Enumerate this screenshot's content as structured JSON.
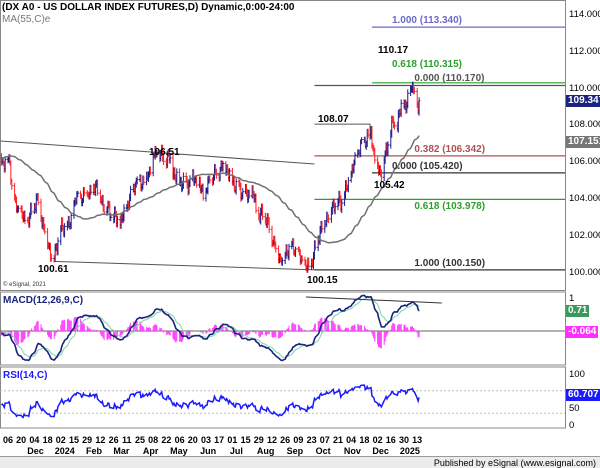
{
  "header": {
    "title": "(DX A0 - US DOLLAR INDEX FUTURES,D) Dynamic,0:00-24:00",
    "ma_label": "MA(55,C)e"
  },
  "copyright": "© eSignal, 2021",
  "footer": "Published by eSignal (www.esignal.com)",
  "colors": {
    "up": "#1a1a8c",
    "down": "#ff2020",
    "ma": "#707070",
    "macd": "#1a237e",
    "signal": "#7fd4a8",
    "hist": "#ff40ff",
    "rsi": "#1a1aff",
    "fib_blue": "#6a6ac8",
    "fib_green": "#2ca02c",
    "fib_brown": "#b05050"
  },
  "chart_data": {
    "type": "line",
    "title": "US DOLLAR INDEX FUTURES (DX A0), Daily",
    "x_unit": "days since 2023-11-06",
    "price_keypoints": [
      [
        -100,
        103.5
      ],
      [
        -70,
        105.5
      ],
      [
        -40,
        107.0
      ],
      [
        -15,
        106.5
      ],
      [
        -6,
        106.12
      ],
      [
        2,
        105.96
      ],
      [
        5,
        103.95
      ],
      [
        20,
        102.59
      ],
      [
        31,
        104.11
      ],
      [
        39,
        102.21
      ],
      [
        48,
        100.61
      ],
      [
        55,
        102.32
      ],
      [
        66,
        102.59
      ],
      [
        71,
        103.95
      ],
      [
        85,
        104.22
      ],
      [
        94,
        104.87
      ],
      [
        98,
        103.95
      ],
      [
        119,
        102.59
      ],
      [
        135,
        104.76
      ],
      [
        148,
        105.14
      ],
      [
        153,
        106.28
      ],
      [
        158,
        106.51
      ],
      [
        166,
        106.23
      ],
      [
        172,
        106.23
      ],
      [
        177,
        105.14
      ],
      [
        188,
        104.76
      ],
      [
        198,
        105.03
      ],
      [
        209,
        104.22
      ],
      [
        214,
        105.03
      ],
      [
        230,
        105.96
      ],
      [
        237,
        105.03
      ],
      [
        251,
        104.16
      ],
      [
        260,
        104.22
      ],
      [
        265,
        102.97
      ],
      [
        272,
        103.24
      ],
      [
        283,
        101.5
      ],
      [
        290,
        100.58
      ],
      [
        299,
        101.5
      ],
      [
        307,
        101.07
      ],
      [
        313,
        100.41
      ],
      [
        320,
        100.15
      ],
      [
        331,
        102.32
      ],
      [
        341,
        103.29
      ],
      [
        348,
        103.95
      ],
      [
        354,
        103.78
      ],
      [
        363,
        105.14
      ],
      [
        371,
        106.55
      ],
      [
        382,
        107.48
      ],
      [
        384,
        108.07
      ],
      [
        389,
        106.12
      ],
      [
        395,
        105.42
      ],
      [
        403,
        106.93
      ],
      [
        408,
        108.29
      ],
      [
        412,
        107.86
      ],
      [
        419,
        109.38
      ],
      [
        422,
        108.84
      ],
      [
        426,
        109.76
      ],
      [
        429,
        110.17
      ],
      [
        432,
        109.11
      ],
      [
        435,
        108.73
      ],
      [
        436,
        109.347
      ]
    ],
    "y_axis": {
      "ylim": [
        99.5,
        114.8
      ],
      "ticks": [
        "114.000",
        "112.000",
        "110.000",
        "108.000",
        "106.000",
        "104.000",
        "102.000",
        "100.000"
      ]
    },
    "last_price": "109.347",
    "ma_value": "107.151",
    "trendlines": [
      {
        "name": "upper-channel",
        "from": [
          -8,
          107.15
        ],
        "to": [
          325,
          105.9
        ]
      },
      {
        "name": "lower-channel",
        "from": [
          48,
          100.61
        ],
        "to": [
          326,
          100.15
        ]
      }
    ],
    "fib_levels": [
      {
        "label": "1.000 (113.340)",
        "price": 113.34,
        "color": "#6a6ac8",
        "from": 386
      },
      {
        "label": "0.618 (110.315)",
        "price": 110.315,
        "color": "#2ca02c",
        "from": 386
      },
      {
        "label": "0.000 (110.170)",
        "price": 110.17,
        "color": "#555555",
        "from": 325
      },
      {
        "label": "0.382 (106.342)",
        "price": 106.342,
        "color": "#b05050",
        "from": 325
      },
      {
        "label": "0.000 (105.420)",
        "price": 105.42,
        "color": "#333333",
        "from": 386
      },
      {
        "label": "0.618 (103.978)",
        "price": 103.978,
        "color": "#2ca02c",
        "from": 325
      },
      {
        "label": "1.000 (100.150)",
        "price": 100.15,
        "color": "#333333",
        "from": 325
      }
    ],
    "annotations": [
      {
        "text": "110.17"
      },
      {
        "text": "108.07"
      },
      {
        "text": "105.42"
      },
      {
        "text": "106.51"
      },
      {
        "text": "100.61"
      },
      {
        "text": "100.15"
      }
    ],
    "macd": {
      "label": "MACD(12,26,9,C)",
      "axis_tick": "1",
      "macd_value": "0.71",
      "hist_value": "-0.064"
    },
    "rsi": {
      "label": "RSI(14,C)",
      "ticks": [
        "100",
        "50",
        "0"
      ],
      "value": "60.707"
    },
    "x_day_labels": [
      "06",
      "20",
      "04",
      "18",
      "02",
      "15",
      "29",
      "12",
      "26",
      "11",
      "25",
      "08",
      "22",
      "06",
      "20",
      "03",
      "17",
      "01",
      "15",
      "29",
      "12",
      "26",
      "09",
      "23",
      "07",
      "21",
      "04",
      "18",
      "02",
      "16",
      "30",
      "13"
    ],
    "x_month_labels": [
      {
        "text": "Dec",
        "day": 25
      },
      {
        "text": "2024",
        "day": 56
      },
      {
        "text": "Feb",
        "day": 87
      },
      {
        "text": "Mar",
        "day": 116
      },
      {
        "text": "Apr",
        "day": 147
      },
      {
        "text": "May",
        "day": 177
      },
      {
        "text": "Jun",
        "day": 208
      },
      {
        "text": "Jul",
        "day": 238
      },
      {
        "text": "Aug",
        "day": 269
      },
      {
        "text": "Sep",
        "day": 300
      },
      {
        "text": "Oct",
        "day": 330
      },
      {
        "text": "Nov",
        "day": 361
      },
      {
        "text": "Dec",
        "day": 391
      },
      {
        "text": "2025",
        "day": 422
      }
    ]
  }
}
